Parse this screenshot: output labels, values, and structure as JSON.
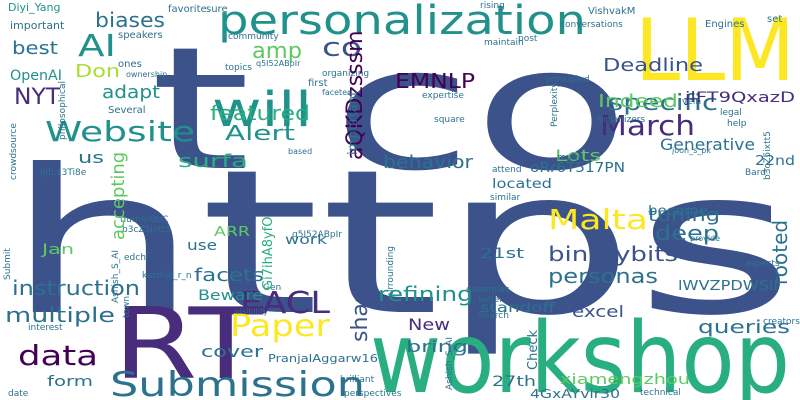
{
  "palette": {
    "background": "#ffffff",
    "dark_purple": "#440154",
    "indigo": "#472d7b",
    "slate_blue": "#3b528b",
    "steel_blue": "#2c728e",
    "teal": "#21918c",
    "sea_green": "#28ae80",
    "green": "#5ec962",
    "lime": "#addc30",
    "yellow": "#fde725"
  },
  "words": [
    {
      "id": "w-https",
      "text": "https"
    },
    {
      "id": "w-t-co",
      "text": "t co"
    },
    {
      "id": "w-workshop",
      "text": "workshop"
    },
    {
      "id": "w-rt",
      "text": "RT"
    },
    {
      "id": "w-llm",
      "text": "LLM"
    },
    {
      "id": "w-personalization",
      "text": "personalization"
    },
    {
      "id": "w-submission",
      "text": "Submission"
    },
    {
      "id": "w-website",
      "text": "Website"
    },
    {
      "id": "w-will",
      "text": "will"
    },
    {
      "id": "w-paper",
      "text": "Paper"
    },
    {
      "id": "w-eacl",
      "text": "EACL"
    },
    {
      "id": "w-data",
      "text": "data"
    },
    {
      "id": "w-malta",
      "text": "Malta"
    },
    {
      "id": "w-march",
      "text": "March"
    },
    {
      "id": "w-ai",
      "text": "AI"
    },
    {
      "id": "w-co-top",
      "text": "co"
    },
    {
      "id": "w-shashank",
      "text": "shashank_bits"
    },
    {
      "id": "w-ssm",
      "text": "aQKDzsssm"
    },
    {
      "id": "w-emnlp",
      "text": "EMNLP"
    },
    {
      "id": "w-specific",
      "text": "specific"
    },
    {
      "id": "w-featured",
      "text": "featured"
    },
    {
      "id": "w-alert",
      "text": "Alert"
    },
    {
      "id": "w-amp",
      "text": "amp"
    },
    {
      "id": "w-biases",
      "text": "biases"
    },
    {
      "id": "w-nyt",
      "text": "NYT"
    },
    {
      "id": "w-best",
      "text": "best"
    },
    {
      "id": "w-adapt",
      "text": "adapt"
    },
    {
      "id": "w-don",
      "text": "Don"
    },
    {
      "id": "w-openai",
      "text": "OpenAI"
    },
    {
      "id": "w-deadline",
      "text": "Deadline"
    },
    {
      "id": "w-indeed",
      "text": "Indeed"
    },
    {
      "id": "w-jlft",
      "text": "jlFT9QxazD"
    },
    {
      "id": "w-instruction",
      "text": "instruction"
    },
    {
      "id": "w-multiple",
      "text": "multiple"
    },
    {
      "id": "w-refining",
      "text": "refining"
    },
    {
      "id": "w-personas",
      "text": "personas"
    },
    {
      "id": "w-binarybits",
      "text": "binarybits"
    },
    {
      "id": "w-deep",
      "text": "deep"
    },
    {
      "id": "w-rooted",
      "text": "rooted"
    },
    {
      "id": "w-queries",
      "text": "queries"
    },
    {
      "id": "w-facets",
      "text": "facets"
    },
    {
      "id": "w-surfa",
      "text": "surfa"
    },
    {
      "id": "w-behavior",
      "text": "behavior"
    },
    {
      "id": "w-tuning",
      "text": "tuning"
    },
    {
      "id": "w-generative",
      "text": "Generative"
    },
    {
      "id": "w-lots",
      "text": "Lots"
    },
    {
      "id": "w-accepting",
      "text": "accepting"
    },
    {
      "id": "w-us",
      "text": "us"
    },
    {
      "id": "w-jan",
      "text": "Jan"
    },
    {
      "id": "w-new",
      "text": "New"
    },
    {
      "id": "w-bring",
      "text": "bring"
    },
    {
      "id": "w-cover",
      "text": "cover"
    },
    {
      "id": "w-form",
      "text": "form"
    },
    {
      "id": "w-beware",
      "text": "Beware"
    },
    {
      "id": "w-excel",
      "text": "excel"
    },
    {
      "id": "w-xiamengzhou",
      "text": "xiamengzhou"
    },
    {
      "id": "w-27th",
      "text": "27th"
    },
    {
      "id": "w-21st",
      "text": "21st"
    },
    {
      "id": "w-22nd",
      "text": "22nd"
    },
    {
      "id": "w-located",
      "text": "located"
    },
    {
      "id": "w-use",
      "text": "use"
    },
    {
      "id": "w-work",
      "text": "work"
    },
    {
      "id": "w-arr",
      "text": "ARR"
    },
    {
      "id": "w-gi7",
      "text": "Gi7ihA8yfO"
    },
    {
      "id": "w-orr",
      "text": "oRr6T517PN"
    },
    {
      "id": "w-lwvz",
      "text": "lWVZPDWSii"
    },
    {
      "id": "w-standoff",
      "text": "standoff"
    },
    {
      "id": "w-check",
      "text": "Check"
    },
    {
      "id": "w-become",
      "text": "become"
    },
    {
      "id": "w-4gx",
      "text": "4GxAYvir30"
    },
    {
      "id": "w-pranjal",
      "text": "PranjalAggarw16"
    },
    {
      "id": "w-important",
      "text": "important"
    },
    {
      "id": "w-diyi",
      "text": "Diyi_Yang"
    },
    {
      "id": "w-speakers",
      "text": "speakers"
    },
    {
      "id": "w-community",
      "text": "community"
    },
    {
      "id": "w-favorite",
      "text": "favorite"
    },
    {
      "id": "w-sure",
      "text": "sure"
    },
    {
      "id": "w-rising",
      "text": "rising"
    },
    {
      "id": "w-conversations",
      "text": "conversations"
    },
    {
      "id": "w-vishvakm",
      "text": "VishvakM"
    },
    {
      "id": "w-engines",
      "text": "Engines"
    },
    {
      "id": "w-set",
      "text": "set"
    },
    {
      "id": "w-post",
      "text": "post"
    },
    {
      "id": "w-maintain",
      "text": "maintain"
    },
    {
      "id": "w-ones",
      "text": "ones"
    },
    {
      "id": "w-ownership",
      "text": "ownership"
    },
    {
      "id": "w-topics",
      "text": "topics"
    },
    {
      "id": "w-organizing",
      "text": "organizing"
    },
    {
      "id": "w-first",
      "text": "first"
    },
    {
      "id": "w-faceted",
      "text": "faceted"
    },
    {
      "id": "w-principled",
      "text": "principled"
    },
    {
      "id": "w-expertise",
      "text": "expertise"
    },
    {
      "id": "w-perplexity",
      "text": "Perplexity"
    },
    {
      "id": "w-legal",
      "text": "legal"
    },
    {
      "id": "w-organizers",
      "text": "organizers"
    },
    {
      "id": "w-help",
      "text": "help"
    },
    {
      "id": "w-joon",
      "text": "joon_s_pk"
    },
    {
      "id": "w-square",
      "text": "square"
    },
    {
      "id": "w-based",
      "text": "based"
    },
    {
      "id": "w-attend",
      "text": "attend"
    },
    {
      "id": "w-multi",
      "text": "multi"
    },
    {
      "id": "w-bard",
      "text": "Bard"
    },
    {
      "id": "w-similar",
      "text": "similar"
    },
    {
      "id": "w-several",
      "text": "Several"
    },
    {
      "id": "w-crowdsource",
      "text": "crowdsource"
    },
    {
      "id": "w-philosophical",
      "text": "philosophical"
    },
    {
      "id": "w-ijdl",
      "text": "IjdL13Ti8e"
    },
    {
      "id": "w-tiurn",
      "text": "tIurnluQbC"
    },
    {
      "id": "w-b3cz",
      "text": "b3cZ5ixtt5"
    },
    {
      "id": "w-q5i",
      "text": "q5I52ABpIr"
    },
    {
      "id": "w-edchi",
      "text": "edchi"
    },
    {
      "id": "w-karthik",
      "text": "karthik_r_n"
    },
    {
      "id": "w-gen",
      "text": "Gen"
    },
    {
      "id": "w-surrounding",
      "text": "surrounding"
    },
    {
      "id": "w-provide",
      "text": "provide"
    },
    {
      "id": "w-aspects",
      "text": "aspects"
    },
    {
      "id": "w-creators",
      "text": "creators"
    },
    {
      "id": "w-examples",
      "text": "examples"
    },
    {
      "id": "w-search",
      "text": "Search"
    },
    {
      "id": "w-better",
      "text": "better"
    },
    {
      "id": "w-visibility",
      "text": "visibility"
    },
    {
      "id": "w-interest",
      "text": "interest"
    },
    {
      "id": "w-town",
      "text": "town"
    },
    {
      "id": "w-submit",
      "text": "Submit"
    },
    {
      "id": "w-date",
      "text": "date"
    },
    {
      "id": "w-brilliant",
      "text": "brilliant"
    },
    {
      "id": "w-perspectives",
      "text": "perspectives"
    },
    {
      "id": "w-ashish",
      "text": "Ashish_S_AI"
    },
    {
      "id": "w-technical",
      "text": "technical"
    },
    {
      "id": "w-vein",
      "text": "vein"
    },
    {
      "id": "w-eunjeong",
      "text": "_eunjeong_hwang"
    },
    {
      "id": "w-immerse",
      "text": "immerse"
    },
    {
      "id": "w-ashwin",
      "text": "ashwinkalyan7"
    },
    {
      "id": "w-s",
      "text": "s"
    }
  ]
}
